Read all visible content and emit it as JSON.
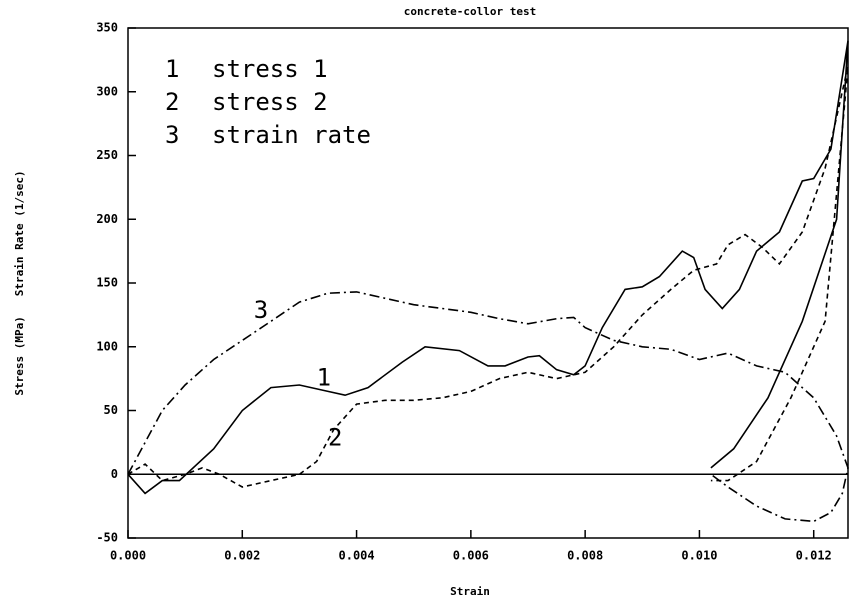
{
  "chart_data": {
    "type": "line",
    "title": "concrete-collor test",
    "xlabel": "Strain",
    "ylabel": "Stress (MPa)   Strain Rate (1/sec)",
    "xlim": [
      0,
      0.0126
    ],
    "xticks": [
      {
        "value": 0,
        "label": "0.000"
      },
      0.002,
      0.004,
      0.006,
      0.008,
      {
        "value": 0.01,
        "label": "0.010"
      },
      0.012
    ],
    "ylim": [
      -50,
      350
    ],
    "yticks": [
      -50,
      0,
      50,
      100,
      150,
      200,
      250,
      300,
      350
    ],
    "grid": false,
    "series": [
      {
        "name": "stress 1",
        "key": "1",
        "color": "#000000",
        "dash": "solid",
        "x": [
          0,
          0.0003,
          0.0006,
          0.0009,
          0.0015,
          0.002,
          0.0025,
          0.003,
          0.0035,
          0.0038,
          0.0042,
          0.0048,
          0.0052,
          0.0058,
          0.0063,
          0.0066,
          0.007,
          0.0072,
          0.0075,
          0.0078,
          0.008,
          0.0083,
          0.0087,
          0.009,
          0.0093,
          0.0097,
          0.0099,
          0.0101,
          0.0104,
          0.0107,
          0.011,
          0.0114,
          0.0118,
          0.012,
          0.0123,
          0.0126,
          0.0124,
          0.0118,
          0.0112,
          0.0106,
          0.0102
        ],
        "values": [
          0,
          -15,
          -5,
          -5,
          20,
          50,
          68,
          70,
          65,
          62,
          68,
          88,
          100,
          97,
          85,
          85,
          92,
          93,
          82,
          78,
          85,
          115,
          145,
          147,
          155,
          175,
          170,
          145,
          130,
          145,
          175,
          190,
          230,
          232,
          255,
          340,
          200,
          120,
          60,
          20,
          5
        ]
      },
      {
        "name": "stress 2",
        "key": "2",
        "color": "#000000",
        "dash": "dashed",
        "x": [
          0,
          0.0003,
          0.0006,
          0.001,
          0.0013,
          0.0016,
          0.002,
          0.0025,
          0.003,
          0.0033,
          0.0036,
          0.004,
          0.0045,
          0.005,
          0.0055,
          0.006,
          0.0065,
          0.007,
          0.0075,
          0.008,
          0.0085,
          0.009,
          0.0095,
          0.0099,
          0.0103,
          0.0105,
          0.0108,
          0.0111,
          0.0114,
          0.0118,
          0.0122,
          0.0126,
          0.0122,
          0.0116,
          0.011,
          0.0105,
          0.0102
        ],
        "values": [
          0,
          8,
          -5,
          0,
          5,
          0,
          -10,
          -5,
          0,
          10,
          35,
          55,
          58,
          58,
          60,
          65,
          75,
          80,
          75,
          80,
          100,
          125,
          145,
          160,
          165,
          180,
          188,
          178,
          165,
          190,
          240,
          320,
          120,
          60,
          10,
          -5,
          -5
        ]
      },
      {
        "name": "strain rate",
        "key": "3",
        "color": "#000000",
        "dash": "dashdot",
        "x": [
          0,
          0.0003,
          0.0006,
          0.001,
          0.0015,
          0.002,
          0.0025,
          0.003,
          0.0035,
          0.004,
          0.0045,
          0.005,
          0.0055,
          0.006,
          0.0065,
          0.007,
          0.0075,
          0.0078,
          0.008,
          0.0085,
          0.009,
          0.0095,
          0.01,
          0.0105,
          0.011,
          0.0115,
          0.012,
          0.0124,
          0.0126,
          0.0125,
          0.0123,
          0.012,
          0.0115,
          0.011,
          0.0105,
          0.0102
        ],
        "values": [
          0,
          25,
          50,
          70,
          90,
          105,
          120,
          135,
          142,
          143,
          138,
          133,
          130,
          127,
          122,
          118,
          122,
          123,
          115,
          105,
          100,
          98,
          90,
          95,
          85,
          80,
          60,
          30,
          5,
          -15,
          -30,
          -37,
          -35,
          -25,
          -10,
          0
        ]
      }
    ]
  }
}
